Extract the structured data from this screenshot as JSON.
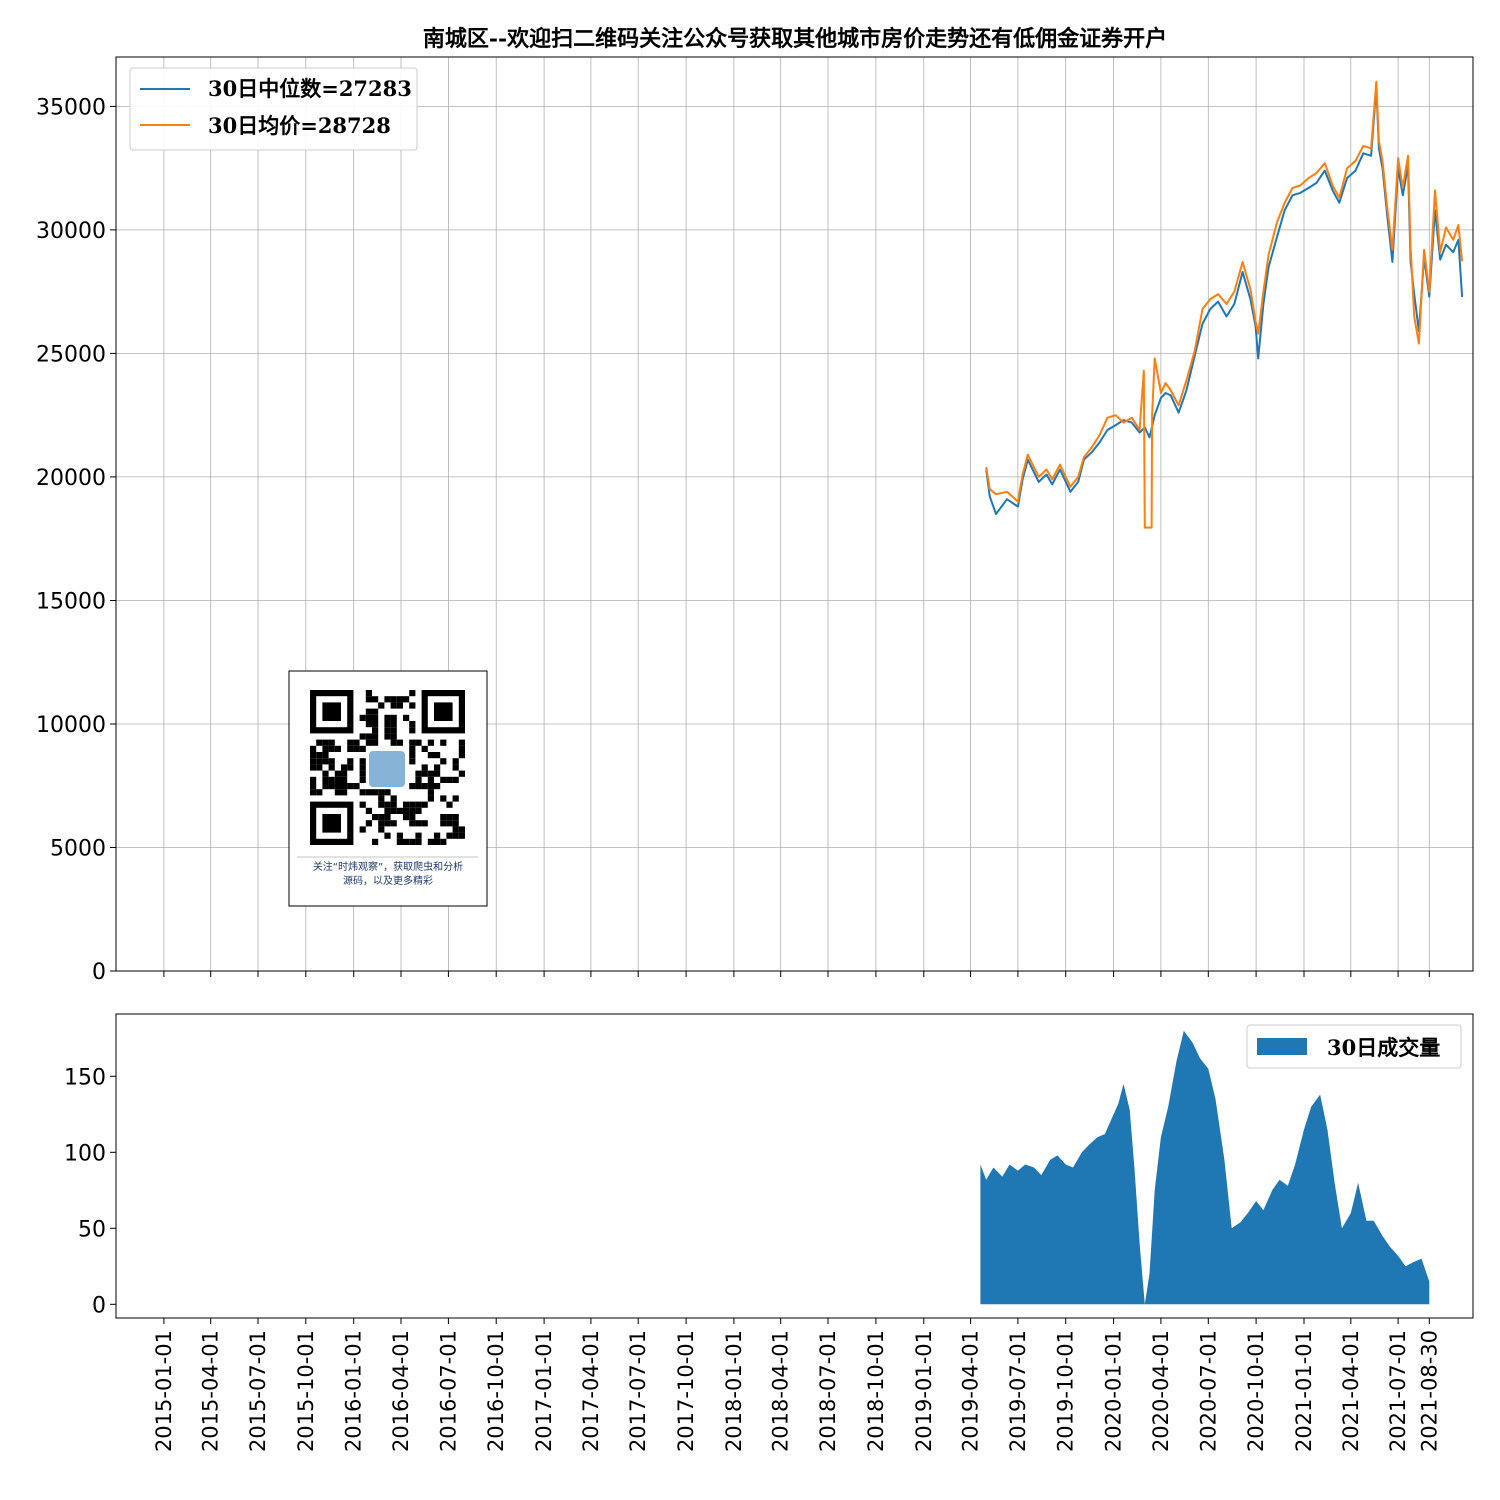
{
  "chart_data": [
    {
      "type": "line",
      "title": "南城区--欢迎扫二维码关注公众号获取其他城市房价走势还有低佣金证券开户",
      "xlabel": "",
      "ylabel": "",
      "xlim": [
        "2014-10-01",
        "2021-11-22"
      ],
      "ylim": [
        0,
        37000
      ],
      "yticks": [
        0,
        5000,
        10000,
        15000,
        20000,
        25000,
        30000,
        35000
      ],
      "grid": true,
      "legend_position": "upper-left",
      "series": [
        {
          "name": "30日中位数=27283",
          "color": "#1f77b4",
          "x": [
            "2019-05-01",
            "2019-05-08",
            "2019-05-20",
            "2019-06-10",
            "2019-07-01",
            "2019-07-10",
            "2019-07-20",
            "2019-08-10",
            "2019-08-25",
            "2019-09-05",
            "2019-09-20",
            "2019-10-10",
            "2019-10-25",
            "2019-11-05",
            "2019-11-20",
            "2019-12-05",
            "2019-12-20",
            "2020-01-05",
            "2020-01-20",
            "2020-02-05",
            "2020-02-20",
            "2020-03-01",
            "2020-03-10",
            "2020-03-20",
            "2020-04-01",
            "2020-04-10",
            "2020-04-20",
            "2020-05-05",
            "2020-05-20",
            "2020-06-05",
            "2020-06-20",
            "2020-07-05",
            "2020-07-20",
            "2020-08-05",
            "2020-08-20",
            "2020-09-05",
            "2020-09-20",
            "2020-09-30",
            "2020-10-05",
            "2020-10-15",
            "2020-10-25",
            "2020-11-10",
            "2020-11-25",
            "2020-12-10",
            "2020-12-25",
            "2021-01-10",
            "2021-01-25",
            "2021-02-10",
            "2021-02-25",
            "2021-03-10",
            "2021-03-25",
            "2021-04-10",
            "2021-04-25",
            "2021-05-10",
            "2021-05-20",
            "2021-05-25",
            "2021-06-01",
            "2021-06-10",
            "2021-06-20",
            "2021-07-01",
            "2021-07-10",
            "2021-07-20",
            "2021-07-25",
            "2021-08-01",
            "2021-08-10",
            "2021-08-20",
            "2021-08-30",
            "2021-09-10",
            "2021-09-20",
            "2021-10-01",
            "2021-10-15",
            "2021-10-25",
            "2021-11-01"
          ],
          "y": [
            20300,
            19200,
            18500,
            19100,
            18800,
            19900,
            20700,
            19800,
            20100,
            19700,
            20300,
            19400,
            19800,
            20700,
            21000,
            21400,
            21900,
            22100,
            22300,
            22200,
            21800,
            22000,
            21600,
            22500,
            23200,
            23400,
            23300,
            22600,
            23500,
            24900,
            26200,
            26800,
            27100,
            26500,
            27000,
            28300,
            27200,
            26100,
            24800,
            27000,
            28500,
            29700,
            30800,
            31400,
            31500,
            31700,
            31900,
            32400,
            31600,
            31100,
            32100,
            32400,
            33100,
            33000,
            35800,
            33300,
            32500,
            30600,
            28700,
            32500,
            31400,
            32600,
            28700,
            27400,
            25900,
            28900,
            27300,
            30800,
            28800,
            29400,
            29100,
            29600,
            27283
          ]
        },
        {
          "name": "30日均价=28728",
          "color": "#ff7f0e",
          "x": [
            "2019-05-01",
            "2019-05-08",
            "2019-05-20",
            "2019-06-10",
            "2019-07-01",
            "2019-07-10",
            "2019-07-20",
            "2019-08-10",
            "2019-08-25",
            "2019-09-05",
            "2019-09-20",
            "2019-10-10",
            "2019-10-25",
            "2019-11-05",
            "2019-11-20",
            "2019-12-05",
            "2019-12-20",
            "2020-01-05",
            "2020-01-20",
            "2020-02-05",
            "2020-02-20",
            "2020-02-28",
            "2020-03-01",
            "2020-03-02",
            "2020-03-10",
            "2020-03-14",
            "2020-03-15",
            "2020-03-20",
            "2020-04-01",
            "2020-04-10",
            "2020-04-20",
            "2020-05-05",
            "2020-05-20",
            "2020-06-05",
            "2020-06-20",
            "2020-07-05",
            "2020-07-20",
            "2020-08-05",
            "2020-08-20",
            "2020-09-05",
            "2020-09-20",
            "2020-09-30",
            "2020-10-05",
            "2020-10-15",
            "2020-10-25",
            "2020-11-10",
            "2020-11-25",
            "2020-12-10",
            "2020-12-25",
            "2021-01-10",
            "2021-01-25",
            "2021-02-10",
            "2021-02-25",
            "2021-03-10",
            "2021-03-25",
            "2021-04-10",
            "2021-04-25",
            "2021-05-10",
            "2021-05-20",
            "2021-05-25",
            "2021-06-01",
            "2021-06-10",
            "2021-06-20",
            "2021-07-01",
            "2021-07-10",
            "2021-07-20",
            "2021-07-25",
            "2021-08-01",
            "2021-08-10",
            "2021-08-20",
            "2021-08-30",
            "2021-09-10",
            "2021-09-20",
            "2021-10-01",
            "2021-10-15",
            "2021-10-25",
            "2021-11-01"
          ],
          "y": [
            20400,
            19500,
            19300,
            19400,
            19000,
            20100,
            20900,
            20000,
            20300,
            19900,
            20500,
            19600,
            20000,
            20800,
            21200,
            21700,
            22400,
            22500,
            22200,
            22400,
            21900,
            24300,
            17950,
            17950,
            17950,
            17950,
            22500,
            24800,
            23400,
            23800,
            23500,
            22900,
            23900,
            25100,
            26800,
            27200,
            27400,
            27000,
            27500,
            28700,
            27600,
            26300,
            25800,
            27500,
            29000,
            30300,
            31100,
            31700,
            31800,
            32100,
            32300,
            32700,
            31800,
            31300,
            32500,
            32800,
            33400,
            33300,
            36000,
            33600,
            32800,
            30900,
            29200,
            32900,
            31700,
            33000,
            29300,
            26500,
            25400,
            29200,
            27500,
            31600,
            29100,
            30100,
            29600,
            30200,
            28728
          ]
        }
      ]
    },
    {
      "type": "area",
      "title": "",
      "xlabel": "",
      "ylabel": "",
      "xlim": [
        "2014-10-01",
        "2021-11-22"
      ],
      "ylim": [
        -9,
        191
      ],
      "yticks": [
        0,
        50,
        100,
        150
      ],
      "grid": false,
      "legend_position": "upper-right",
      "xticks": [
        "2015-01-01",
        "2015-04-01",
        "2015-07-01",
        "2015-10-01",
        "2016-01-01",
        "2016-04-01",
        "2016-07-01",
        "2016-10-01",
        "2017-01-01",
        "2017-04-01",
        "2017-07-01",
        "2017-10-01",
        "2018-01-01",
        "2018-04-01",
        "2018-07-01",
        "2018-10-01",
        "2019-01-01",
        "2019-04-01",
        "2019-07-01",
        "2019-10-01",
        "2020-01-01",
        "2020-04-01",
        "2020-07-01",
        "2020-10-01",
        "2021-01-01",
        "2021-04-01",
        "2021-07-01",
        "2021-08-30"
      ],
      "series": [
        {
          "name": "30日成交量",
          "color": "#1f77b4",
          "x": [
            "2019-04-20",
            "2019-05-01",
            "2019-05-15",
            "2019-06-01",
            "2019-06-15",
            "2019-07-01",
            "2019-07-15",
            "2019-08-01",
            "2019-08-15",
            "2019-09-01",
            "2019-09-15",
            "2019-10-01",
            "2019-10-15",
            "2019-11-01",
            "2019-11-15",
            "2019-12-01",
            "2019-12-15",
            "2020-01-01",
            "2020-01-10",
            "2020-01-20",
            "2020-02-01",
            "2020-02-10",
            "2020-02-20",
            "2020-03-01",
            "2020-03-10",
            "2020-03-20",
            "2020-04-01",
            "2020-04-15",
            "2020-05-01",
            "2020-05-15",
            "2020-06-01",
            "2020-06-15",
            "2020-07-01",
            "2020-07-15",
            "2020-08-01",
            "2020-08-15",
            "2020-09-01",
            "2020-09-15",
            "2020-10-01",
            "2020-10-15",
            "2020-11-01",
            "2020-11-15",
            "2020-12-01",
            "2020-12-15",
            "2021-01-01",
            "2021-01-15",
            "2021-02-01",
            "2021-02-15",
            "2021-03-01",
            "2021-03-15",
            "2021-04-01",
            "2021-04-15",
            "2021-05-01",
            "2021-05-15",
            "2021-06-01",
            "2021-06-15",
            "2021-07-01",
            "2021-07-15",
            "2021-08-01",
            "2021-08-15",
            "2021-08-30"
          ],
          "y": [
            92,
            82,
            90,
            84,
            92,
            88,
            92,
            90,
            85,
            95,
            98,
            92,
            90,
            100,
            105,
            110,
            112,
            125,
            132,
            145,
            128,
            90,
            40,
            0,
            20,
            75,
            110,
            130,
            160,
            180,
            172,
            162,
            155,
            135,
            95,
            50,
            54,
            60,
            68,
            62,
            75,
            82,
            78,
            92,
            115,
            130,
            138,
            115,
            80,
            50,
            60,
            80,
            55,
            55,
            45,
            38,
            32,
            25,
            28,
            30,
            15
          ]
        }
      ]
    }
  ],
  "qr_widget": {
    "caption_line1": "关注“时炜观察”，获取爬虫和分析",
    "caption_line2": "源码，以及更多精彩"
  }
}
